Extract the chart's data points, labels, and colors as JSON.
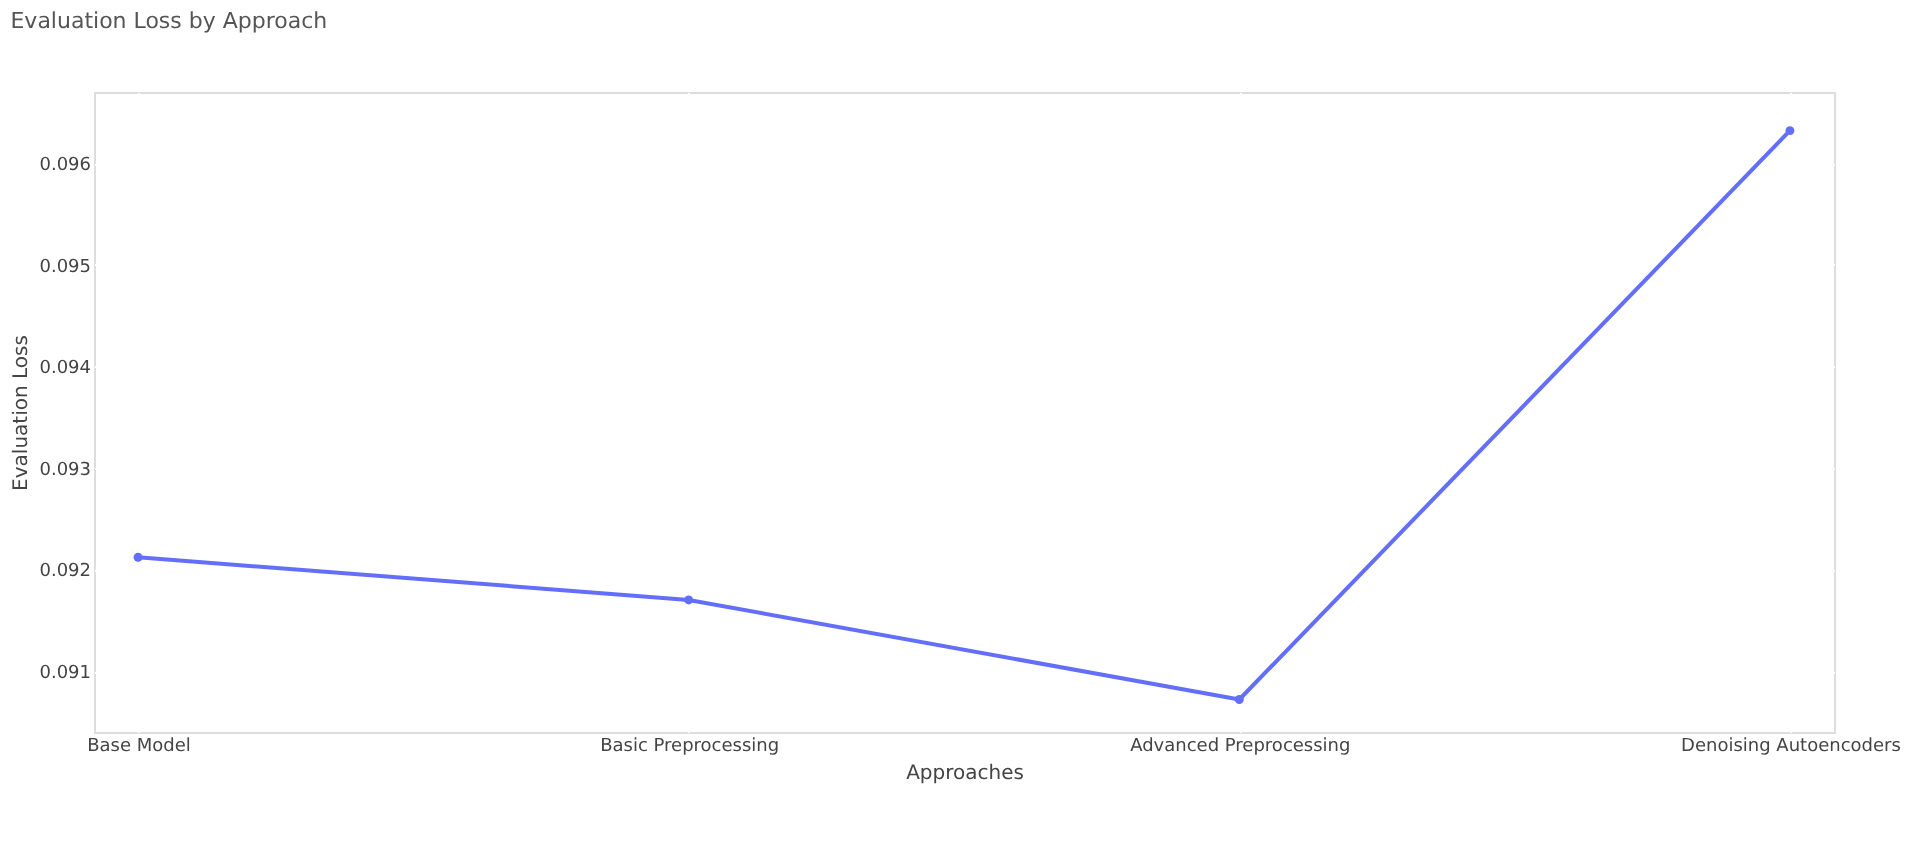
{
  "chart_data": {
    "type": "line",
    "title": "Evaluation Loss by Approach",
    "xlabel": "Approaches",
    "ylabel": "Evaluation Loss",
    "categories": [
      "Base Model",
      "Basic Preprocessing",
      "Advanced Preprocessing",
      "Denoising Autoencoders"
    ],
    "series": [
      {
        "color": "#636efa",
        "values": [
          0.09212,
          0.0917,
          0.09072,
          0.09632
        ]
      }
    ],
    "ylim": [
      0.0904,
      0.0967
    ],
    "yticks": [
      0.091,
      0.092,
      0.093,
      0.094,
      0.095,
      0.096
    ],
    "grid": true,
    "marker": "circle",
    "line_style": "solid"
  }
}
